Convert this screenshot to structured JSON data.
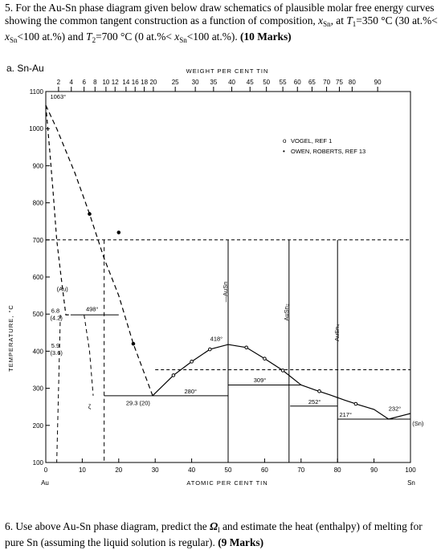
{
  "q5": {
    "prefix": "5. For the Au-Sn phase diagram given below draw schematics of plausible molar free energy curves showing the common tangent construction as a function of composition, ",
    "x_sym": "x",
    "x_sub": "Sn",
    "at_word": ", at ",
    "T1_sym": "T",
    "T1_sub": "1",
    "T1_expr": "=350 °C (30 at.%< ",
    "T1_tail": "<100 at.%) and ",
    "T2_sym": "T",
    "T2_sub": "2",
    "T2_expr": "=700 °C (0 at.%< ",
    "T2_tail": "<100 at.%). ",
    "marks": "(10 Marks)"
  },
  "q6": {
    "prefix": "6. Use above Au-Sn phase diagram, predict the ",
    "omega": "Ω",
    "omega_sub": "l",
    "middle": " and estimate the heat (enthalpy) of melting for pure Sn (assuming the liquid solution is regular). ",
    "marks": "(9 Marks)"
  },
  "figure": {
    "panel_label": "a.  Sn-Au",
    "top_axis_title": "WEIGHT  PER  CENT  TIN",
    "bottom_axis_title": "ATOMIC  PER  CENT  TIN",
    "y_axis_title": "TEMPERATURE, °C",
    "bottom_left_label": "Au",
    "bottom_right_label": "Sn",
    "legend": {
      "open_marker": "o",
      "filled_marker": "•",
      "item1": "VOGEL,  REF 1",
      "item2": "OWEN,  ROBERTS,  REF 13"
    },
    "annotations": {
      "t1063": "1063°",
      "t498": "498°",
      "t418": "418°",
      "t309": "309°",
      "t280": "280°",
      "t252": "252°",
      "t217": "217°",
      "t232": "232°",
      "au_phase": "(Au)",
      "sn_phase": "(Sn)",
      "zeta": "ζ",
      "c68": "6.8",
      "c42": "(4.2)",
      "c59": "5.9",
      "c36": "(3.6)",
      "c293": "29.3 (20)",
      "ausn": "—AuSn",
      "ausn2": "AuSn₂",
      "ausn4": "AuSn₄"
    }
  },
  "chart_data": {
    "type": "line",
    "title": "a. Sn-Au",
    "xlabel": "ATOMIC PER CENT TIN",
    "x2label": "WEIGHT PER CENT TIN",
    "ylabel": "TEMPERATURE, °C",
    "xlim": [
      0,
      100
    ],
    "ylim": [
      100,
      1100
    ],
    "x_ticks": [
      0,
      10,
      20,
      30,
      40,
      50,
      60,
      70,
      80,
      90,
      100
    ],
    "y_ticks": [
      100,
      200,
      300,
      400,
      500,
      600,
      700,
      800,
      900,
      1000,
      1100
    ],
    "x2_ticks": [
      "2",
      "4",
      "6",
      "8",
      "10",
      "12",
      "14",
      "16",
      "18",
      "20",
      "25",
      "30",
      "35",
      "40",
      "45",
      "50",
      "55",
      "60",
      "65",
      "70",
      "75",
      "80",
      "90"
    ],
    "x2_tick_at_pct": [
      3.5,
      7,
      10.5,
      13.5,
      16.5,
      19,
      22,
      24.5,
      27,
      29.5,
      35.5,
      41,
      46,
      51,
      56,
      60.5,
      65,
      69,
      73,
      77,
      80.5,
      84,
      91
    ],
    "series": [
      {
        "name": "liquidus_left",
        "x": [
          0,
          3,
          8,
          12,
          16,
          20,
          24,
          29.3
        ],
        "y": [
          1063,
          1000,
          880,
          770,
          650,
          550,
          420,
          280
        ]
      },
      {
        "name": "liquidus_mid",
        "x": [
          29.3,
          35,
          40,
          45,
          50,
          55,
          60,
          65,
          70
        ],
        "y": [
          280,
          335,
          372,
          405,
          418,
          410,
          380,
          348,
          309
        ]
      },
      {
        "name": "liquidus_right",
        "x": [
          70,
          74,
          78,
          82,
          86,
          90,
          94,
          100
        ],
        "y": [
          309,
          295,
          282,
          268,
          255,
          243,
          217,
          232
        ]
      },
      {
        "name": "solidus_left",
        "x": [
          0,
          1,
          2,
          3,
          4.2,
          5.5,
          6.8
        ],
        "y": [
          1063,
          950,
          830,
          700,
          600,
          498,
          498
        ]
      }
    ],
    "isotherms": [
      {
        "T": 498,
        "x": [
          6.8,
          20
        ]
      },
      {
        "T": 280,
        "x": [
          16,
          50
        ]
      },
      {
        "T": 309,
        "x": [
          50,
          70
        ]
      },
      {
        "T": 252,
        "x": [
          67,
          80
        ]
      },
      {
        "T": 217,
        "x": [
          80,
          100
        ]
      }
    ],
    "reference_lines": {
      "T1": 350,
      "T2": 700,
      "compounds_x": [
        50,
        66.7,
        80
      ]
    },
    "legend_position": "top-right",
    "grid": false
  }
}
